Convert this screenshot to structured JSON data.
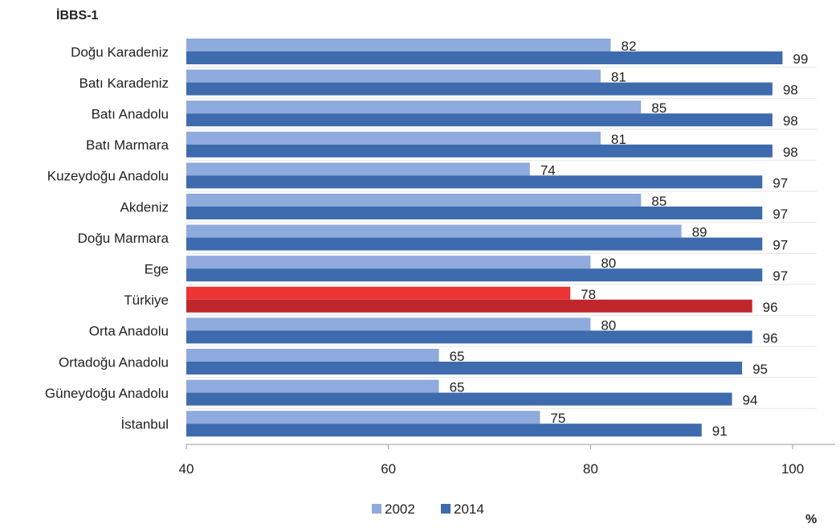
{
  "chart_data": {
    "type": "bar",
    "orientation": "horizontal",
    "title": "İBBS-1",
    "unit_label": "%",
    "categories": [
      "Doğu Karadeniz",
      "Batı Karadeniz",
      "Batı Anadolu",
      "Batı Marmara",
      "Kuzeydoğu Anadolu",
      "Akdeniz",
      "Doğu Marmara",
      "Ege",
      "Türkiye",
      "Orta Anadolu",
      "Ortadoğu Anadolu",
      "Güneydoğu Anadolu",
      "İstanbul"
    ],
    "series": [
      {
        "name": "2002",
        "color": "#8FAADC",
        "values": [
          82,
          81,
          85,
          81,
          74,
          85,
          89,
          80,
          78,
          80,
          65,
          65,
          75
        ]
      },
      {
        "name": "2014",
        "color": "#3D6BAD",
        "values": [
          99,
          98,
          98,
          98,
          97,
          97,
          97,
          97,
          96,
          96,
          95,
          94,
          91
        ]
      }
    ],
    "highlight": {
      "category": "Türkiye",
      "colors": [
        "#EC3434",
        "#C0272D"
      ]
    },
    "xlim": [
      40,
      100
    ],
    "xticks": [
      40,
      60,
      80,
      100
    ],
    "grid": false,
    "legend_position": "bottom-left"
  }
}
